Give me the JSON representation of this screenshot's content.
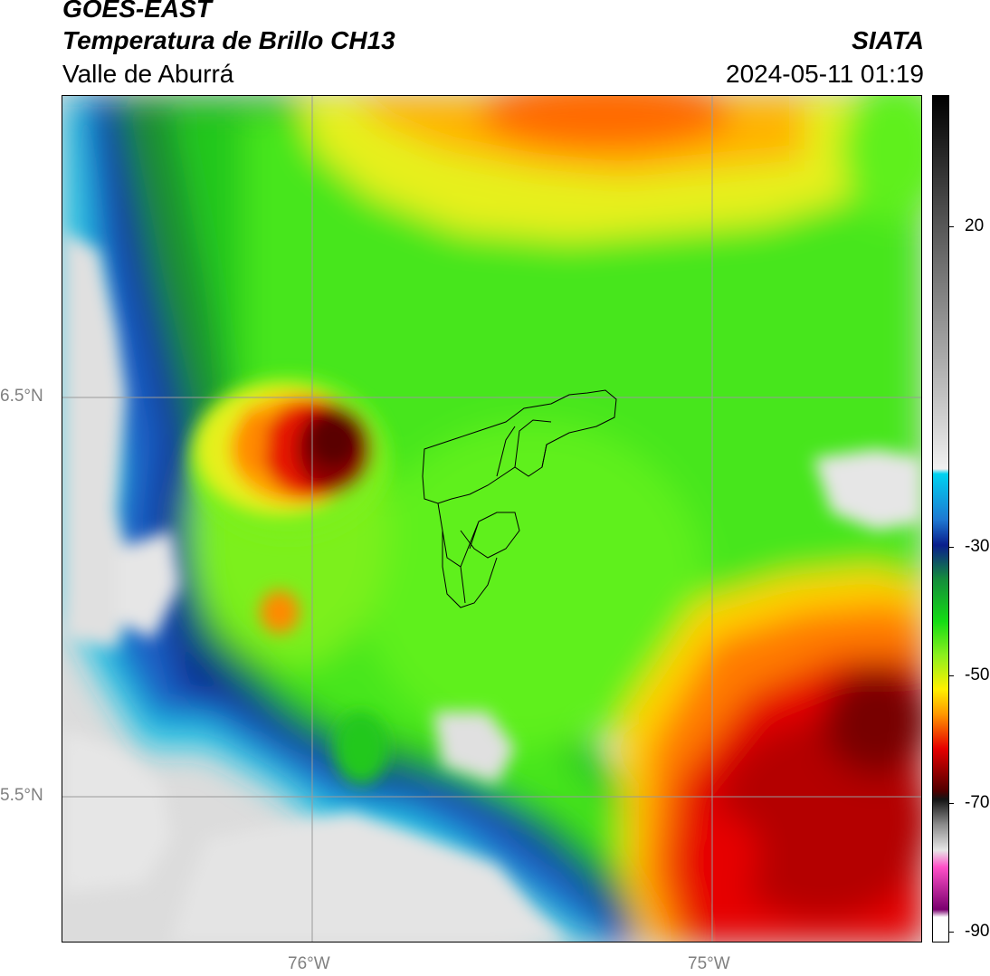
{
  "header": {
    "satellite": "GOES-EAST",
    "product": "Temperatura de Brillo CH13",
    "region": "Valle de Aburrá",
    "organization": "SIATA",
    "datetime": "2024-05-11 01:19"
  },
  "map": {
    "lat_labels": [
      "6.5°N",
      "5.5°N"
    ],
    "lon_labels": [
      "76°W",
      "75°W"
    ],
    "feature": "Valle de Aburrá municipal boundaries"
  },
  "colorbar": {
    "tick_labels": [
      "20",
      "-30",
      "-50",
      "-70",
      "-90"
    ],
    "range": [
      -92,
      28
    ]
  }
}
